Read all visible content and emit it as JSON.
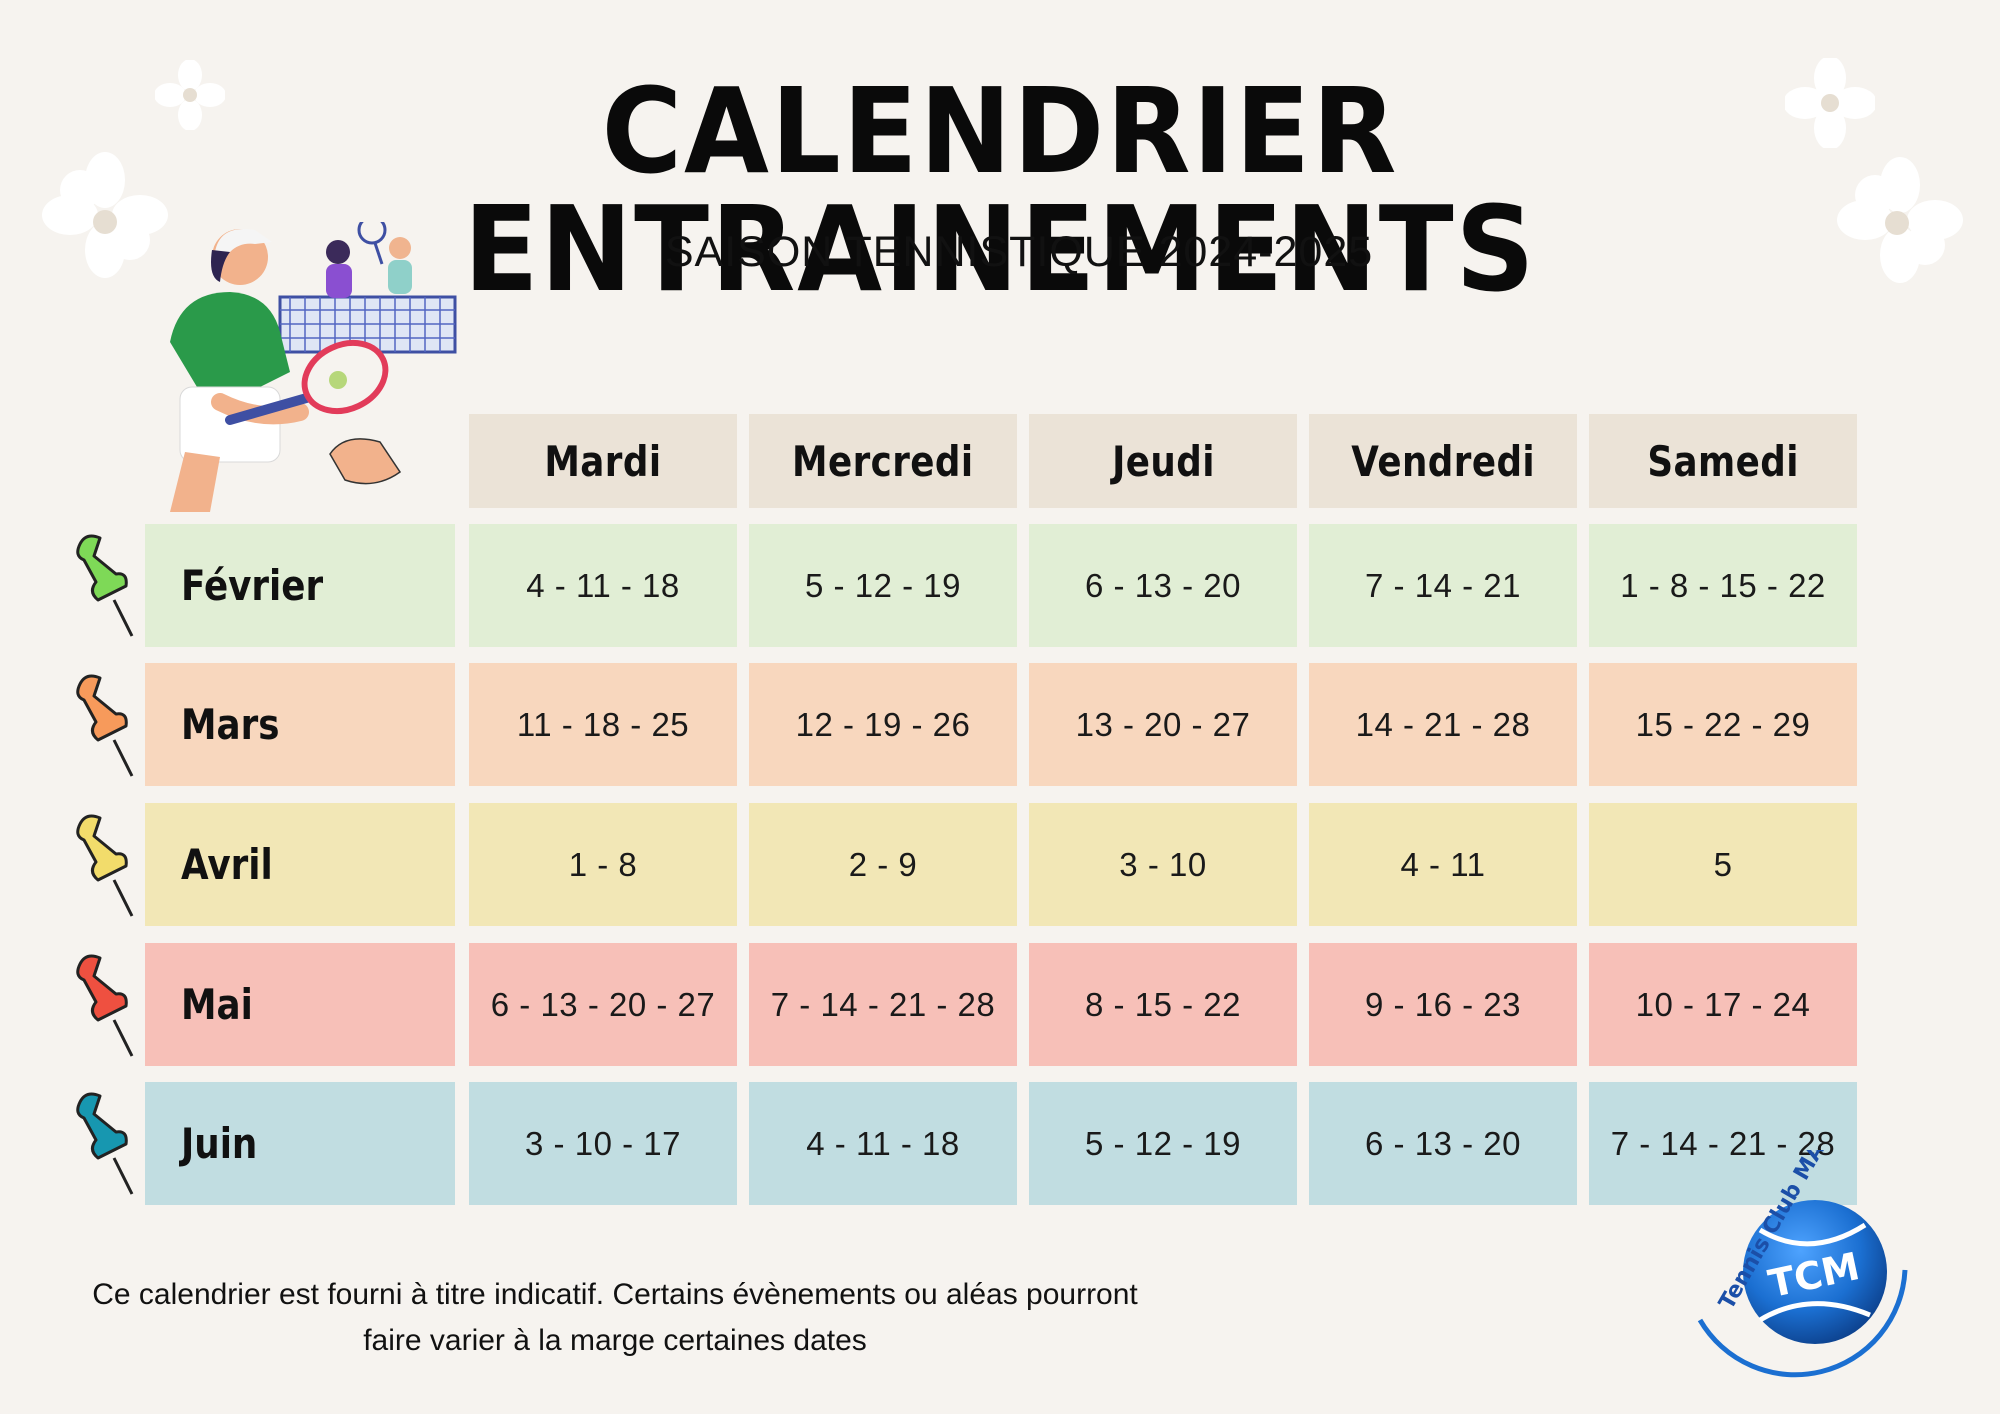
{
  "title": "CALENDRIER ENTRAINEMENTS",
  "subtitle": "SAISON TENNISTIQUE 2024-2025",
  "days": [
    "Mardi",
    "Mercredi",
    "Jeudi",
    "Vendredi",
    "Samedi"
  ],
  "rows": [
    {
      "month": "Février",
      "pin_color": "#7ed957",
      "bg": "#e1eed5",
      "dates": [
        "4 - 11 - 18",
        "5 - 12 - 19",
        "6 - 13 - 20",
        "7 - 14 - 21",
        "1 - 8 - 15 - 22"
      ]
    },
    {
      "month": "Mars",
      "pin_color": "#f79a5b",
      "bg": "#f8d7be",
      "dates": [
        "11 - 18 - 25",
        "12 - 19 - 26",
        "13 - 20 - 27",
        "14 - 21 - 28",
        "15 - 22 - 29"
      ]
    },
    {
      "month": "Avril",
      "pin_color": "#f2dc6b",
      "bg": "#f2e7b6",
      "dates": [
        "1 - 8",
        "2 - 9",
        "3 - 10",
        "4 - 11",
        "5"
      ]
    },
    {
      "month": "Mai",
      "pin_color": "#ef5040",
      "bg": "#f7c0b8",
      "dates": [
        "6 - 13 - 20 - 27",
        "7 - 14 - 21 - 28",
        "8 - 15 - 22",
        "9 - 16 - 23",
        "10 - 17 - 24"
      ]
    },
    {
      "month": "Juin",
      "pin_color": "#1797b0",
      "bg": "#c1dde1",
      "dates": [
        "3 - 10 - 17",
        "4 - 11 - 18",
        "5 - 12 - 19",
        "6 - 13 - 20",
        "7 - 14 - 21 - 28"
      ]
    }
  ],
  "footer": {
    "line1": "Ce calendrier est fourni à titre indicatif. Certains évènements ou aléas pourront",
    "line2": "faire varier à la marge certaines dates"
  },
  "logo": {
    "club_name": "Tennis Club MABLY",
    "initials": "TCM"
  },
  "colors": {
    "background": "#f6f3ef",
    "header_bg": "#ebe3d7",
    "logo_blue": "#1b6fd1"
  }
}
